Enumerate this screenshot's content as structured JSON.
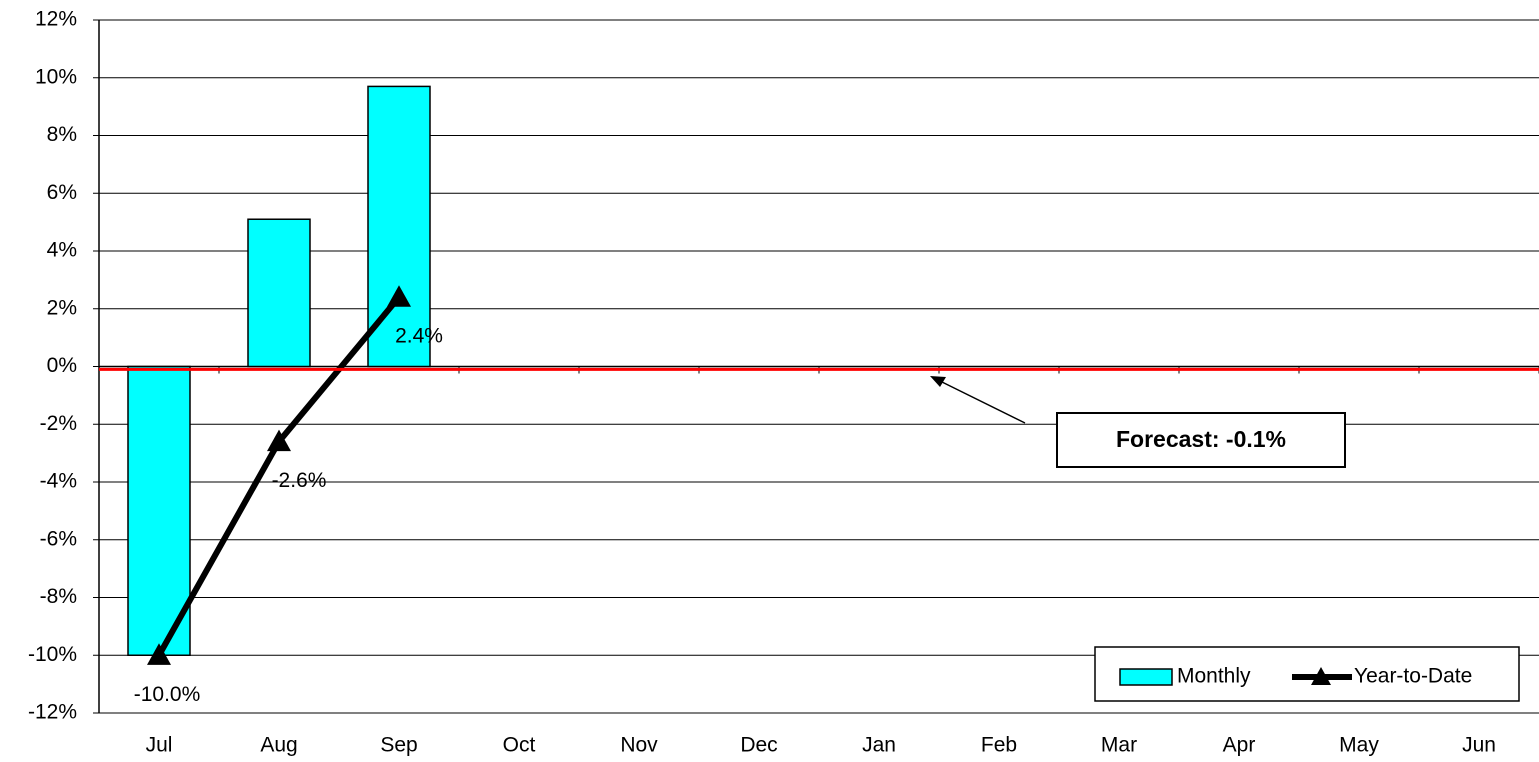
{
  "chart_data": {
    "type": "bar",
    "categories": [
      "Jul",
      "Aug",
      "Sep",
      "Oct",
      "Nov",
      "Dec",
      "Jan",
      "Feb",
      "Mar",
      "Apr",
      "May",
      "Jun"
    ],
    "series": [
      {
        "name": "Monthly",
        "type": "bar",
        "color": "#00ffff",
        "values": [
          -10.0,
          5.1,
          9.7,
          null,
          null,
          null,
          null,
          null,
          null,
          null,
          null,
          null
        ]
      },
      {
        "name": "Year-to-Date",
        "type": "line",
        "color": "#000000",
        "values": [
          -10.0,
          -2.6,
          2.4,
          null,
          null,
          null,
          null,
          null,
          null,
          null,
          null,
          null
        ],
        "value_labels": [
          "-10.0%",
          "-2.6%",
          "2.4%",
          null,
          null,
          null,
          null,
          null,
          null,
          null,
          null,
          null
        ]
      }
    ],
    "forecast": {
      "value": -0.1,
      "label": "Forecast: -0.1%",
      "color": "#ff0000"
    },
    "ylim": [
      -12,
      12
    ],
    "yticks": [
      {
        "value": -12,
        "label": "-12%"
      },
      {
        "value": -10,
        "label": "-10%"
      },
      {
        "value": -8,
        "label": "-8%"
      },
      {
        "value": -6,
        "label": "-6%"
      },
      {
        "value": -4,
        "label": "-4%"
      },
      {
        "value": -2,
        "label": "-2%"
      },
      {
        "value": 0,
        "label": "0%"
      },
      {
        "value": 2,
        "label": "2%"
      },
      {
        "value": 4,
        "label": "4%"
      },
      {
        "value": 6,
        "label": "6%"
      },
      {
        "value": 8,
        "label": "8%"
      },
      {
        "value": 10,
        "label": "10%"
      },
      {
        "value": 12,
        "label": "12%"
      }
    ],
    "grid": true,
    "legend": "lower right"
  }
}
